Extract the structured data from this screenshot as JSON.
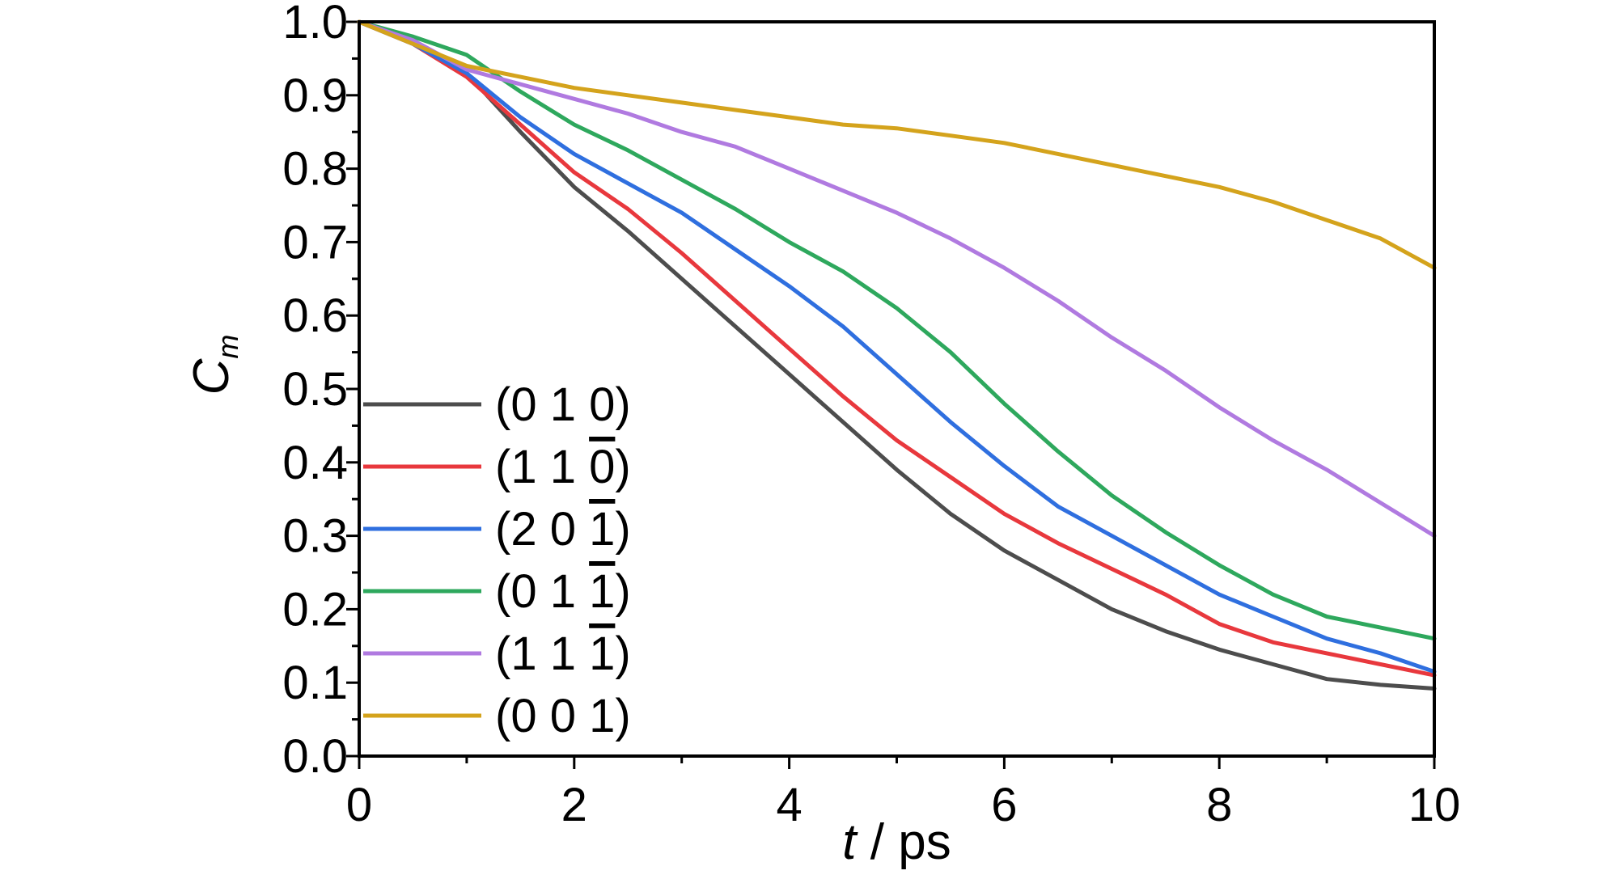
{
  "chart_data": {
    "type": "line",
    "xlabel_italic": "t",
    "xlabel_rest": " / ps",
    "ylabel_main": "C",
    "ylabel_sub": "m",
    "xlim": [
      0,
      10
    ],
    "ylim": [
      0.0,
      1.0
    ],
    "x_ticks": [
      "0",
      "2",
      "4",
      "6",
      "8",
      "10"
    ],
    "x_tick_values": [
      0,
      2,
      4,
      6,
      8,
      10
    ],
    "y_ticks": [
      "0.0",
      "0.1",
      "0.2",
      "0.3",
      "0.4",
      "0.5",
      "0.6",
      "0.7",
      "0.8",
      "0.9",
      "1.0"
    ],
    "y_tick_values": [
      0.0,
      0.1,
      0.2,
      0.3,
      0.4,
      0.5,
      0.6,
      0.7,
      0.8,
      0.9,
      1.0
    ],
    "grid": false,
    "legend_position": "left",
    "x": [
      0,
      0.5,
      1,
      1.5,
      2,
      2.5,
      3,
      3.5,
      4,
      4.5,
      5,
      5.5,
      6,
      6.5,
      7,
      7.5,
      8,
      8.5,
      9,
      9.5,
      10
    ],
    "series": [
      {
        "name": "(0 1 0)",
        "color": "#4d4d4d",
        "values": [
          1.0,
          0.975,
          0.93,
          0.85,
          0.775,
          0.715,
          0.65,
          0.585,
          0.52,
          0.455,
          0.39,
          0.33,
          0.28,
          0.24,
          0.2,
          0.17,
          0.145,
          0.125,
          0.105,
          0.097,
          0.092
        ]
      },
      {
        "name": "(1 1 0)",
        "color": "#e8383d",
        "values": [
          1.0,
          0.97,
          0.925,
          0.86,
          0.795,
          0.745,
          0.685,
          0.62,
          0.555,
          0.49,
          0.43,
          0.38,
          0.33,
          0.29,
          0.255,
          0.22,
          0.18,
          0.155,
          0.14,
          0.125,
          0.11
        ]
      },
      {
        "name": "(2 0 1)",
        "color": "#2f6fdf",
        "values": [
          1.0,
          0.97,
          0.93,
          0.87,
          0.82,
          0.78,
          0.74,
          0.69,
          0.64,
          0.585,
          0.52,
          0.455,
          0.395,
          0.34,
          0.3,
          0.26,
          0.22,
          0.19,
          0.16,
          0.14,
          0.115
        ]
      },
      {
        "name": "(0 1 1)",
        "color": "#2ea85d",
        "values": [
          1.0,
          0.98,
          0.955,
          0.905,
          0.86,
          0.825,
          0.785,
          0.745,
          0.7,
          0.66,
          0.61,
          0.55,
          0.48,
          0.415,
          0.355,
          0.305,
          0.26,
          0.22,
          0.19,
          0.175,
          0.16
        ]
      },
      {
        "name": "(1 1 1)",
        "color": "#b07ae0",
        "values": [
          1.0,
          0.975,
          0.935,
          0.915,
          0.895,
          0.875,
          0.85,
          0.83,
          0.8,
          0.77,
          0.74,
          0.705,
          0.665,
          0.62,
          0.57,
          0.525,
          0.475,
          0.43,
          0.39,
          0.345,
          0.3
        ]
      },
      {
        "name": "(0 0 1)",
        "color": "#d4a31c",
        "values": [
          1.0,
          0.97,
          0.94,
          0.925,
          0.91,
          0.9,
          0.89,
          0.88,
          0.87,
          0.86,
          0.855,
          0.845,
          0.835,
          0.82,
          0.805,
          0.79,
          0.775,
          0.755,
          0.73,
          0.705,
          0.665
        ]
      }
    ],
    "legend": [
      {
        "d1": "0",
        "d2": "1",
        "d3": "0",
        "bar": ""
      },
      {
        "d1": "1",
        "d2": "1",
        "d3": "0",
        "bar": "d3"
      },
      {
        "d1": "2",
        "d2": "0",
        "d3": "1",
        "bar": "d3"
      },
      {
        "d1": "0",
        "d2": "1",
        "d3": "1",
        "bar": "d3"
      },
      {
        "d1": "1",
        "d2": "1",
        "d3": "1",
        "bar": "d3"
      },
      {
        "d1": "0",
        "d2": "0",
        "d3": "1",
        "bar": ""
      }
    ]
  }
}
